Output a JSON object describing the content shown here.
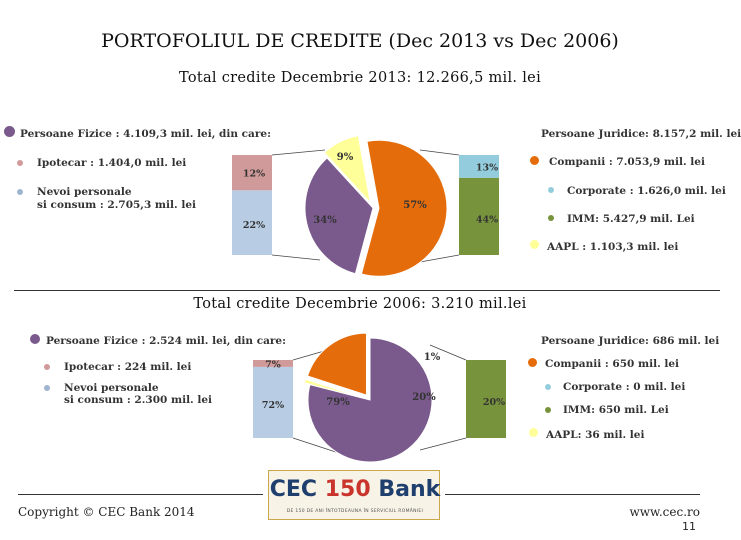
{
  "header": {
    "title": "PORTOFOLIUL DE CREDITE  (Dec 2013 vs Dec 2006)"
  },
  "colors": {
    "purple": "#7a5a8c",
    "pink": "#d19a9a",
    "lightblue": "#b8cce4",
    "orange": "#e46c0a",
    "cyan": "#93cddd",
    "green": "#77933c",
    "yellow": "#ffff99"
  },
  "chart_data": [
    {
      "type": "pie",
      "title": "Total credite Decembrie 2013: 12.266,5 mil. lei",
      "left_legend": {
        "header": "Persoane Fizice : 4.109,3 mil. lei, din care:",
        "items": [
          "Ipotecar : 1.404,0 mil. lei",
          "Nevoi personale",
          "si consum : 2.705,3 mil. lei"
        ]
      },
      "right_legend": {
        "header": "Persoane Juridice: 8.157,2 mil. lei",
        "items": [
          "Companii : 7.053,9 mil. lei",
          "Corporate : 1.626,0 mil. lei",
          "IMM: 5.427,9 mil. Lei",
          "AAPL : 1.103,3 mil. lei"
        ]
      },
      "pie": {
        "slices": [
          {
            "label": "Persoane Fizice",
            "value": 34,
            "text": "34%",
            "color": "#7a5a8c"
          },
          {
            "label": "AAPL",
            "value": 9,
            "text": "9%",
            "color": "#ffff99"
          },
          {
            "label": "Companii",
            "value": 57,
            "text": "57%",
            "color": "#e46c0a"
          }
        ]
      },
      "left_bar": {
        "segments": [
          {
            "label": "Nevoi personale si consum",
            "value": 22,
            "text": "22%",
            "color": "#b8cce4"
          },
          {
            "label": "Ipotecar",
            "value": 12,
            "text": "12%",
            "color": "#d19a9a"
          }
        ]
      },
      "right_bar": {
        "segments": [
          {
            "label": "IMM",
            "value": 44,
            "text": "44%",
            "color": "#77933c"
          },
          {
            "label": "Corporate",
            "value": 13,
            "text": "13%",
            "color": "#93cddd"
          }
        ]
      }
    },
    {
      "type": "pie",
      "title": "Total credite Decembrie 2006: 3.210 mil.lei",
      "left_legend": {
        "header": "Persoane Fizice : 2.524 mil. lei, din care:",
        "items": [
          "Ipotecar : 224 mil. lei",
          "Nevoi personale",
          "si consum : 2.300 mil. lei"
        ]
      },
      "right_legend": {
        "header": "Persoane Juridice: 686 mil. lei",
        "items": [
          "Companii : 650 mil. lei",
          "Corporate : 0 mil. lei",
          "IMM: 650 mil. Lei",
          "AAPL: 36 mil. lei"
        ]
      },
      "pie": {
        "slices": [
          {
            "label": "Persoane Fizice",
            "value": 79,
            "text": "79%",
            "color": "#7a5a8c"
          },
          {
            "label": "AAPL",
            "value": 1,
            "text": "1%",
            "color": "#ffff99"
          },
          {
            "label": "Companii",
            "value": 20,
            "text": "20%",
            "color": "#e46c0a"
          }
        ]
      },
      "left_bar": {
        "segments": [
          {
            "label": "Nevoi personale si consum",
            "value": 72,
            "text": "72%",
            "color": "#b8cce4"
          },
          {
            "label": "Ipotecar",
            "value": 7,
            "text": "7%",
            "color": "#d19a9a"
          }
        ]
      },
      "right_bar": {
        "segments": [
          {
            "label": "IMM",
            "value": 20,
            "text": "20%",
            "color": "#77933c"
          }
        ]
      }
    }
  ],
  "footer": {
    "copyright": "Copyright © CEC Bank 2014",
    "url": "www.cec.ro",
    "page": "11"
  },
  "logo": {
    "text_a": "CEC",
    "text_b": "150",
    "text_c": "Bank",
    "tagline": "DE 150 DE ANI ÎNTOTDEAUNA ÎN SERVICIUL ROMÂNIEI"
  }
}
